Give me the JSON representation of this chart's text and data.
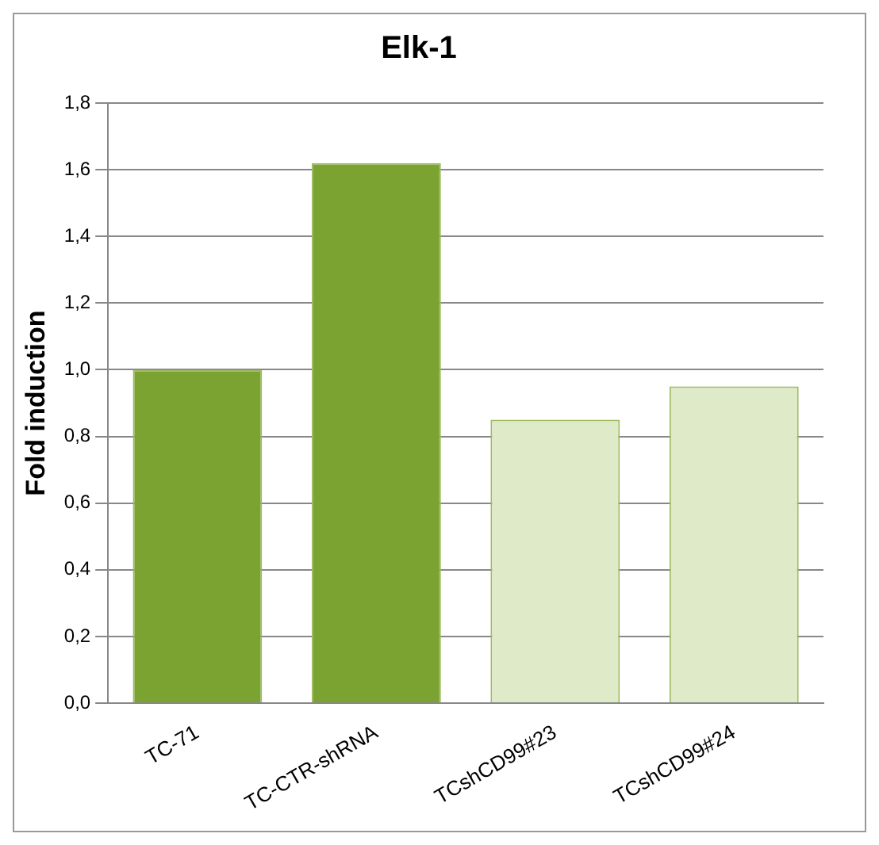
{
  "chart_data": {
    "type": "bar",
    "title": "Elk-1",
    "ylabel": "Fold induction",
    "categories": [
      "TC-71",
      "TC-CTR-shRNA",
      "TCshCD99#23",
      "TCshCD99#24"
    ],
    "values": [
      1.0,
      1.62,
      0.85,
      0.95
    ],
    "colors": [
      "#7ba332",
      "#7ba332",
      "#dfeac8",
      "#dfeac8"
    ],
    "ylim": [
      0,
      1.8
    ],
    "yticks": [
      {
        "value": 0,
        "label": "0,0"
      },
      {
        "value": 0.2,
        "label": "0,2"
      },
      {
        "value": 0.4,
        "label": "0,4"
      },
      {
        "value": 0.6,
        "label": "0,6"
      },
      {
        "value": 0.8,
        "label": "0,8"
      },
      {
        "value": 1.0,
        "label": "1,0"
      },
      {
        "value": 1.2,
        "label": "1,2"
      },
      {
        "value": 1.4,
        "label": "1,4"
      },
      {
        "value": 1.6,
        "label": "1,6"
      },
      {
        "value": 1.8,
        "label": "1,8"
      }
    ],
    "grid": "y",
    "legend": false
  }
}
